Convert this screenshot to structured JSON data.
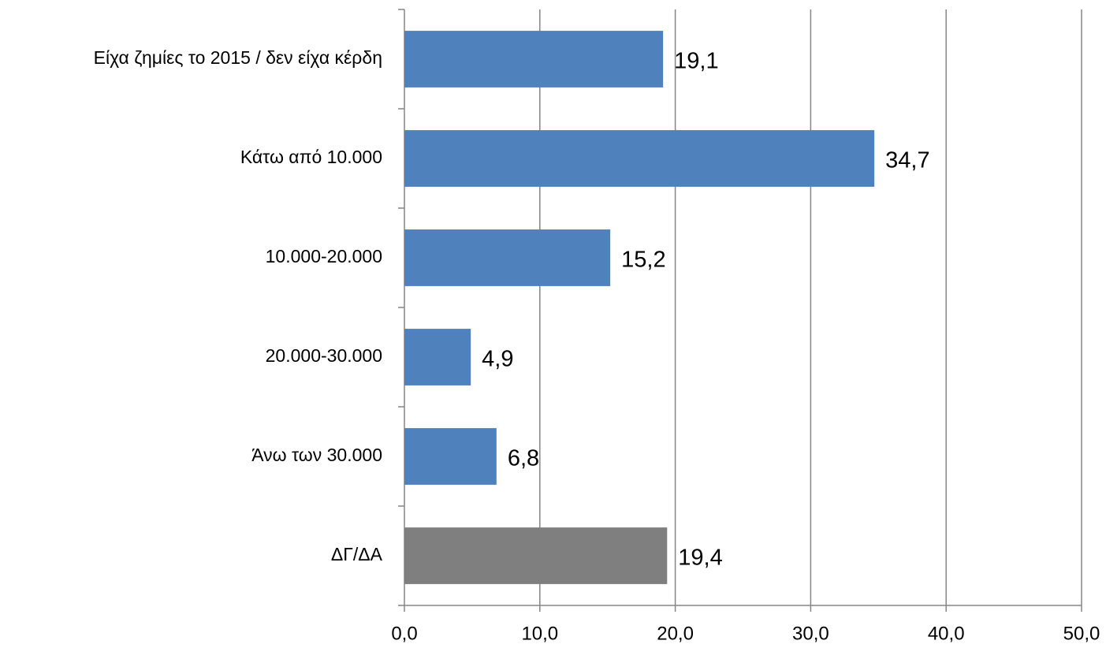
{
  "chart_data": {
    "type": "barh",
    "categories": [
      "Είχα ζημίες το 2015 / δεν είχα κέρδη",
      "Κάτω από 10.000",
      "10.000-20.000",
      "20.000-30.000",
      "Άνω των 30.000",
      "ΔΓ/ΔΑ"
    ],
    "values": [
      19.1,
      34.7,
      15.2,
      4.9,
      6.8,
      19.4
    ],
    "value_labels": [
      "19,1",
      "34,7",
      "15,2",
      "4,9",
      "6,8",
      "19,4"
    ],
    "colors": [
      "#4f81bd",
      "#4f81bd",
      "#4f81bd",
      "#4f81bd",
      "#4f81bd",
      "#7f7f7f"
    ],
    "xlim": [
      0,
      50
    ],
    "xticks": [
      {
        "value": 0,
        "label": "0,0"
      },
      {
        "value": 10,
        "label": "10,0"
      },
      {
        "value": 20,
        "label": "20,0"
      },
      {
        "value": 30,
        "label": "30,0"
      },
      {
        "value": 40,
        "label": "40,0"
      },
      {
        "value": 50,
        "label": "50,0"
      }
    ],
    "grid": true
  }
}
